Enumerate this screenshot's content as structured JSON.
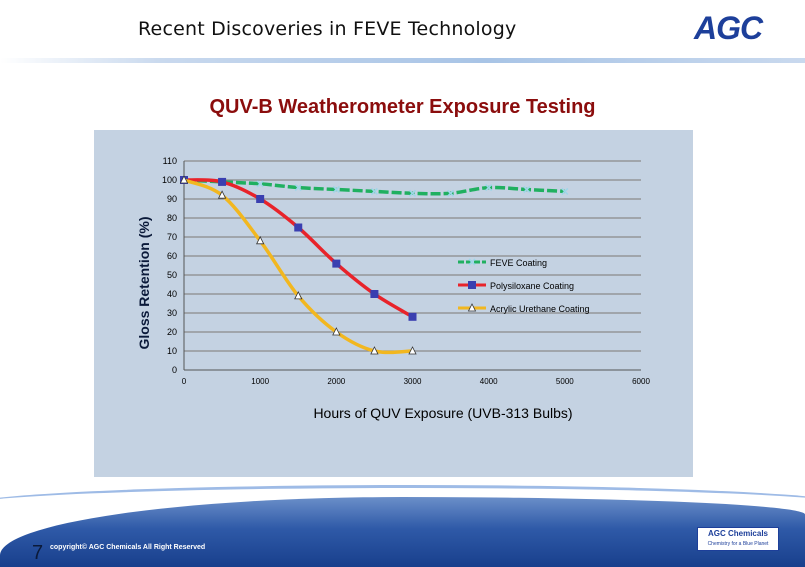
{
  "slide": {
    "title": "Recent Discoveries in FEVE Technology",
    "logo_text": "AGC",
    "page_number": "7",
    "copyright": "copyright© AGC Chemicals  All Right Reserved",
    "footer_logo_line1": "AGC Chemicals",
    "footer_logo_line2": "Chemistry for a Blue Planet"
  },
  "colors": {
    "title_red": "#8b0d0d",
    "feve": "#20b060",
    "polysiloxane": "#e8232a",
    "acrylic": "#f2b71f",
    "marker_blue": "#3a3fb0",
    "plot_bg": "#c4d2e2"
  },
  "chart_data": {
    "type": "line",
    "title": "QUV-B Weatherometer Exposure Testing",
    "xlabel": "Hours of QUV Exposure  (UVB-313 Bulbs)",
    "ylabel": "Gloss Retention (%)",
    "xlim": [
      0,
      6000
    ],
    "ylim": [
      0,
      110
    ],
    "xticks": [
      0,
      1000,
      2000,
      3000,
      4000,
      5000,
      6000
    ],
    "yticks": [
      0,
      10,
      20,
      30,
      40,
      50,
      60,
      70,
      80,
      90,
      100,
      110
    ],
    "grid": "horizontal",
    "legend_position": "right",
    "series": [
      {
        "name": "FEVE  Coating",
        "color": "#20b060",
        "marker": "x",
        "x": [
          0,
          500,
          1000,
          1500,
          2000,
          2500,
          3000,
          3500,
          4000,
          4500,
          5000
        ],
        "y": [
          100,
          99,
          98,
          96,
          95,
          94,
          93,
          93,
          96,
          95,
          94
        ]
      },
      {
        "name": "Polysiloxane Coating",
        "color": "#e8232a",
        "marker": "square",
        "x": [
          0,
          500,
          1000,
          1500,
          2000,
          2500,
          3000
        ],
        "y": [
          100,
          99,
          90,
          75,
          56,
          40,
          28
        ]
      },
      {
        "name": "Acrylic Urethane Coating",
        "color": "#f2b71f",
        "marker": "triangle",
        "x": [
          0,
          500,
          1000,
          1500,
          2000,
          2500,
          3000
        ],
        "y": [
          100,
          92,
          68,
          39,
          20,
          10,
          10
        ]
      }
    ]
  }
}
